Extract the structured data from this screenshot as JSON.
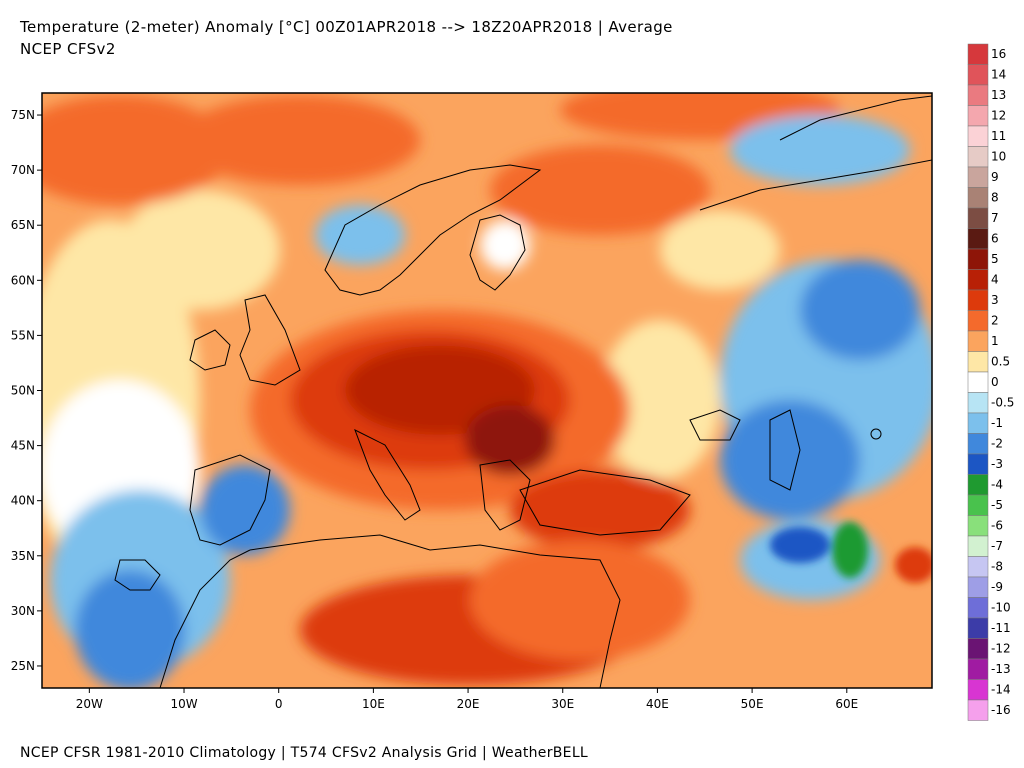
{
  "header": {
    "title": "Temperature (2-meter) Anomaly  [°C] 00Z01APR2018 --> 18Z20APR2018 | Average",
    "subtitle": "NCEP CFSv2"
  },
  "footer": {
    "text": "NCEP CFSR 1981-2010 Climatology | T574 CFSv2 Analysis Grid | WeatherBELL"
  },
  "map": {
    "lat_range": [
      23,
      77
    ],
    "lon_range": [
      -25,
      69
    ],
    "lat_ticks": [
      "25N",
      "30N",
      "35N",
      "40N",
      "45N",
      "50N",
      "55N",
      "60N",
      "65N",
      "70N",
      "75N"
    ],
    "lon_ticks": [
      "20W",
      "10W",
      "0",
      "10E",
      "20E",
      "30E",
      "40E",
      "50E",
      "60E"
    ]
  },
  "legend": {
    "items": [
      {
        "label": "16",
        "color": "#d6383c"
      },
      {
        "label": "14",
        "color": "#e0545a"
      },
      {
        "label": "13",
        "color": "#ea7a80"
      },
      {
        "label": "12",
        "color": "#f4a7ae"
      },
      {
        "label": "11",
        "color": "#fbd2d6"
      },
      {
        "label": "10",
        "color": "#e6cbc6"
      },
      {
        "label": "9",
        "color": "#c9a59d"
      },
      {
        "label": "8",
        "color": "#a98275"
      },
      {
        "label": "7",
        "color": "#7c4d43"
      },
      {
        "label": "6",
        "color": "#5a1a12"
      },
      {
        "label": "5",
        "color": "#8e1508"
      },
      {
        "label": "4",
        "color": "#b82006"
      },
      {
        "label": "3",
        "color": "#dd3a0c"
      },
      {
        "label": "2",
        "color": "#f46a2c"
      },
      {
        "label": "1",
        "color": "#fba45e"
      },
      {
        "label": "0.5",
        "color": "#fee7a6"
      },
      {
        "label": "0",
        "color": "#ffffff"
      },
      {
        "label": "-0.5",
        "color": "#b7e4f4"
      },
      {
        "label": "-1",
        "color": "#7cc0ec"
      },
      {
        "label": "-2",
        "color": "#4088dc"
      },
      {
        "label": "-3",
        "color": "#1c56c4"
      },
      {
        "label": "-4",
        "color": "#1f9a30"
      },
      {
        "label": "-5",
        "color": "#49c24d"
      },
      {
        "label": "-6",
        "color": "#89e07b"
      },
      {
        "label": "-7",
        "color": "#d2f1d0"
      },
      {
        "label": "-8",
        "color": "#c6c6f2"
      },
      {
        "label": "-9",
        "color": "#9e9ee6"
      },
      {
        "label": "-10",
        "color": "#6e6ed8"
      },
      {
        "label": "-11",
        "color": "#3c3ca8"
      },
      {
        "label": "-12",
        "color": "#6a1473"
      },
      {
        "label": "-13",
        "color": "#a01ba2"
      },
      {
        "label": "-14",
        "color": "#d835d2"
      },
      {
        "label": "-16",
        "color": "#f5a0ec"
      }
    ]
  }
}
